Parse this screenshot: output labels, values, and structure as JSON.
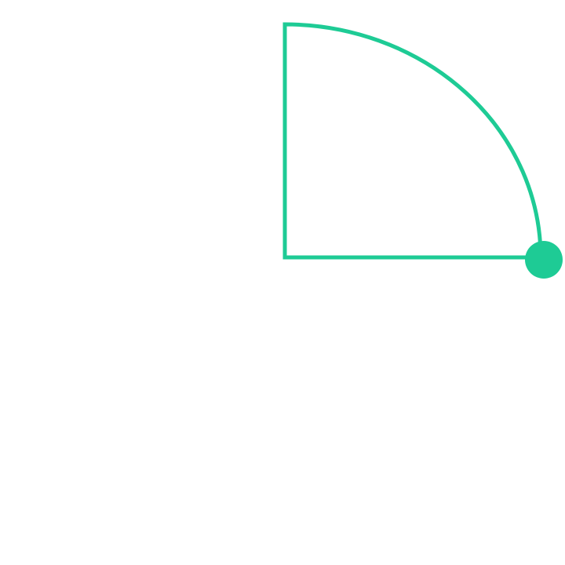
{
  "colors": {
    "background": "#ffffff",
    "accent": "#1ecb95"
  },
  "shape": {
    "kind": "quarter-circle-sector",
    "quadrant": "top-right"
  },
  "handle": {
    "icon": "circle-handle-icon"
  }
}
